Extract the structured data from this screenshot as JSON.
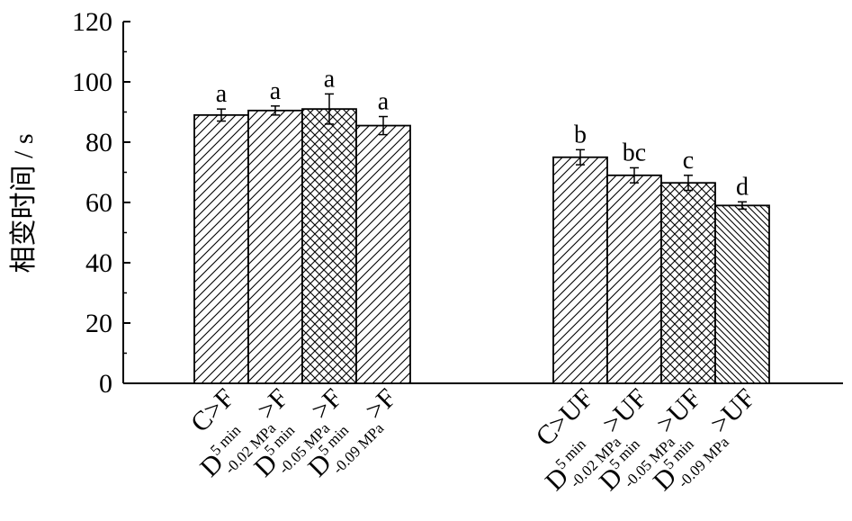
{
  "chart_data": {
    "type": "bar",
    "xlabel": "",
    "ylabel": "相变时间 / s",
    "ylim": [
      0,
      120
    ],
    "yticks": [
      0,
      20,
      40,
      60,
      80,
      100,
      120
    ],
    "grid": false,
    "legend": "none",
    "groups": [
      {
        "bars": [
          {
            "label": {
              "base": "C",
              "sup": "",
              "sub": "",
              "tail": ">F"
            },
            "value": 89,
            "err": 2,
            "letter": "a",
            "pattern": "diag-right"
          },
          {
            "label": {
              "base": "D",
              "sup": "5 min",
              "sub": "-0.02 MPa",
              "tail": ">F"
            },
            "value": 90.5,
            "err": 1.5,
            "letter": "a",
            "pattern": "diag-right"
          },
          {
            "label": {
              "base": "D",
              "sup": "5 min",
              "sub": "-0.05 MPa",
              "tail": ">F"
            },
            "value": 91,
            "err": 5,
            "letter": "a",
            "pattern": "crosshatch"
          },
          {
            "label": {
              "base": "D",
              "sup": "5 min",
              "sub": "-0.09 MPa",
              "tail": ">F"
            },
            "value": 85.5,
            "err": 3,
            "letter": "a",
            "pattern": "diag-right"
          }
        ]
      },
      {
        "bars": [
          {
            "label": {
              "base": "C",
              "sup": "",
              "sub": "",
              "tail": ">UF"
            },
            "value": 75,
            "err": 2.5,
            "letter": "b",
            "pattern": "diag-right"
          },
          {
            "label": {
              "base": "D",
              "sup": "5 min",
              "sub": "-0.02 MPa",
              "tail": ">UF"
            },
            "value": 69,
            "err": 2.5,
            "letter": "bc",
            "pattern": "diag-right"
          },
          {
            "label": {
              "base": "D",
              "sup": "5 min",
              "sub": "-0.05 MPa",
              "tail": ">UF"
            },
            "value": 66.5,
            "err": 2.5,
            "letter": "c",
            "pattern": "crosshatch"
          },
          {
            "label": {
              "base": "D",
              "sup": "5 min",
              "sub": "-0.09 MPa",
              "tail": ">UF"
            },
            "value": 59,
            "err": 1.2,
            "letter": "d",
            "pattern": "diag-left"
          }
        ]
      }
    ],
    "colors": {
      "bar_fill": "#ffffff",
      "stroke": "#000000"
    }
  }
}
